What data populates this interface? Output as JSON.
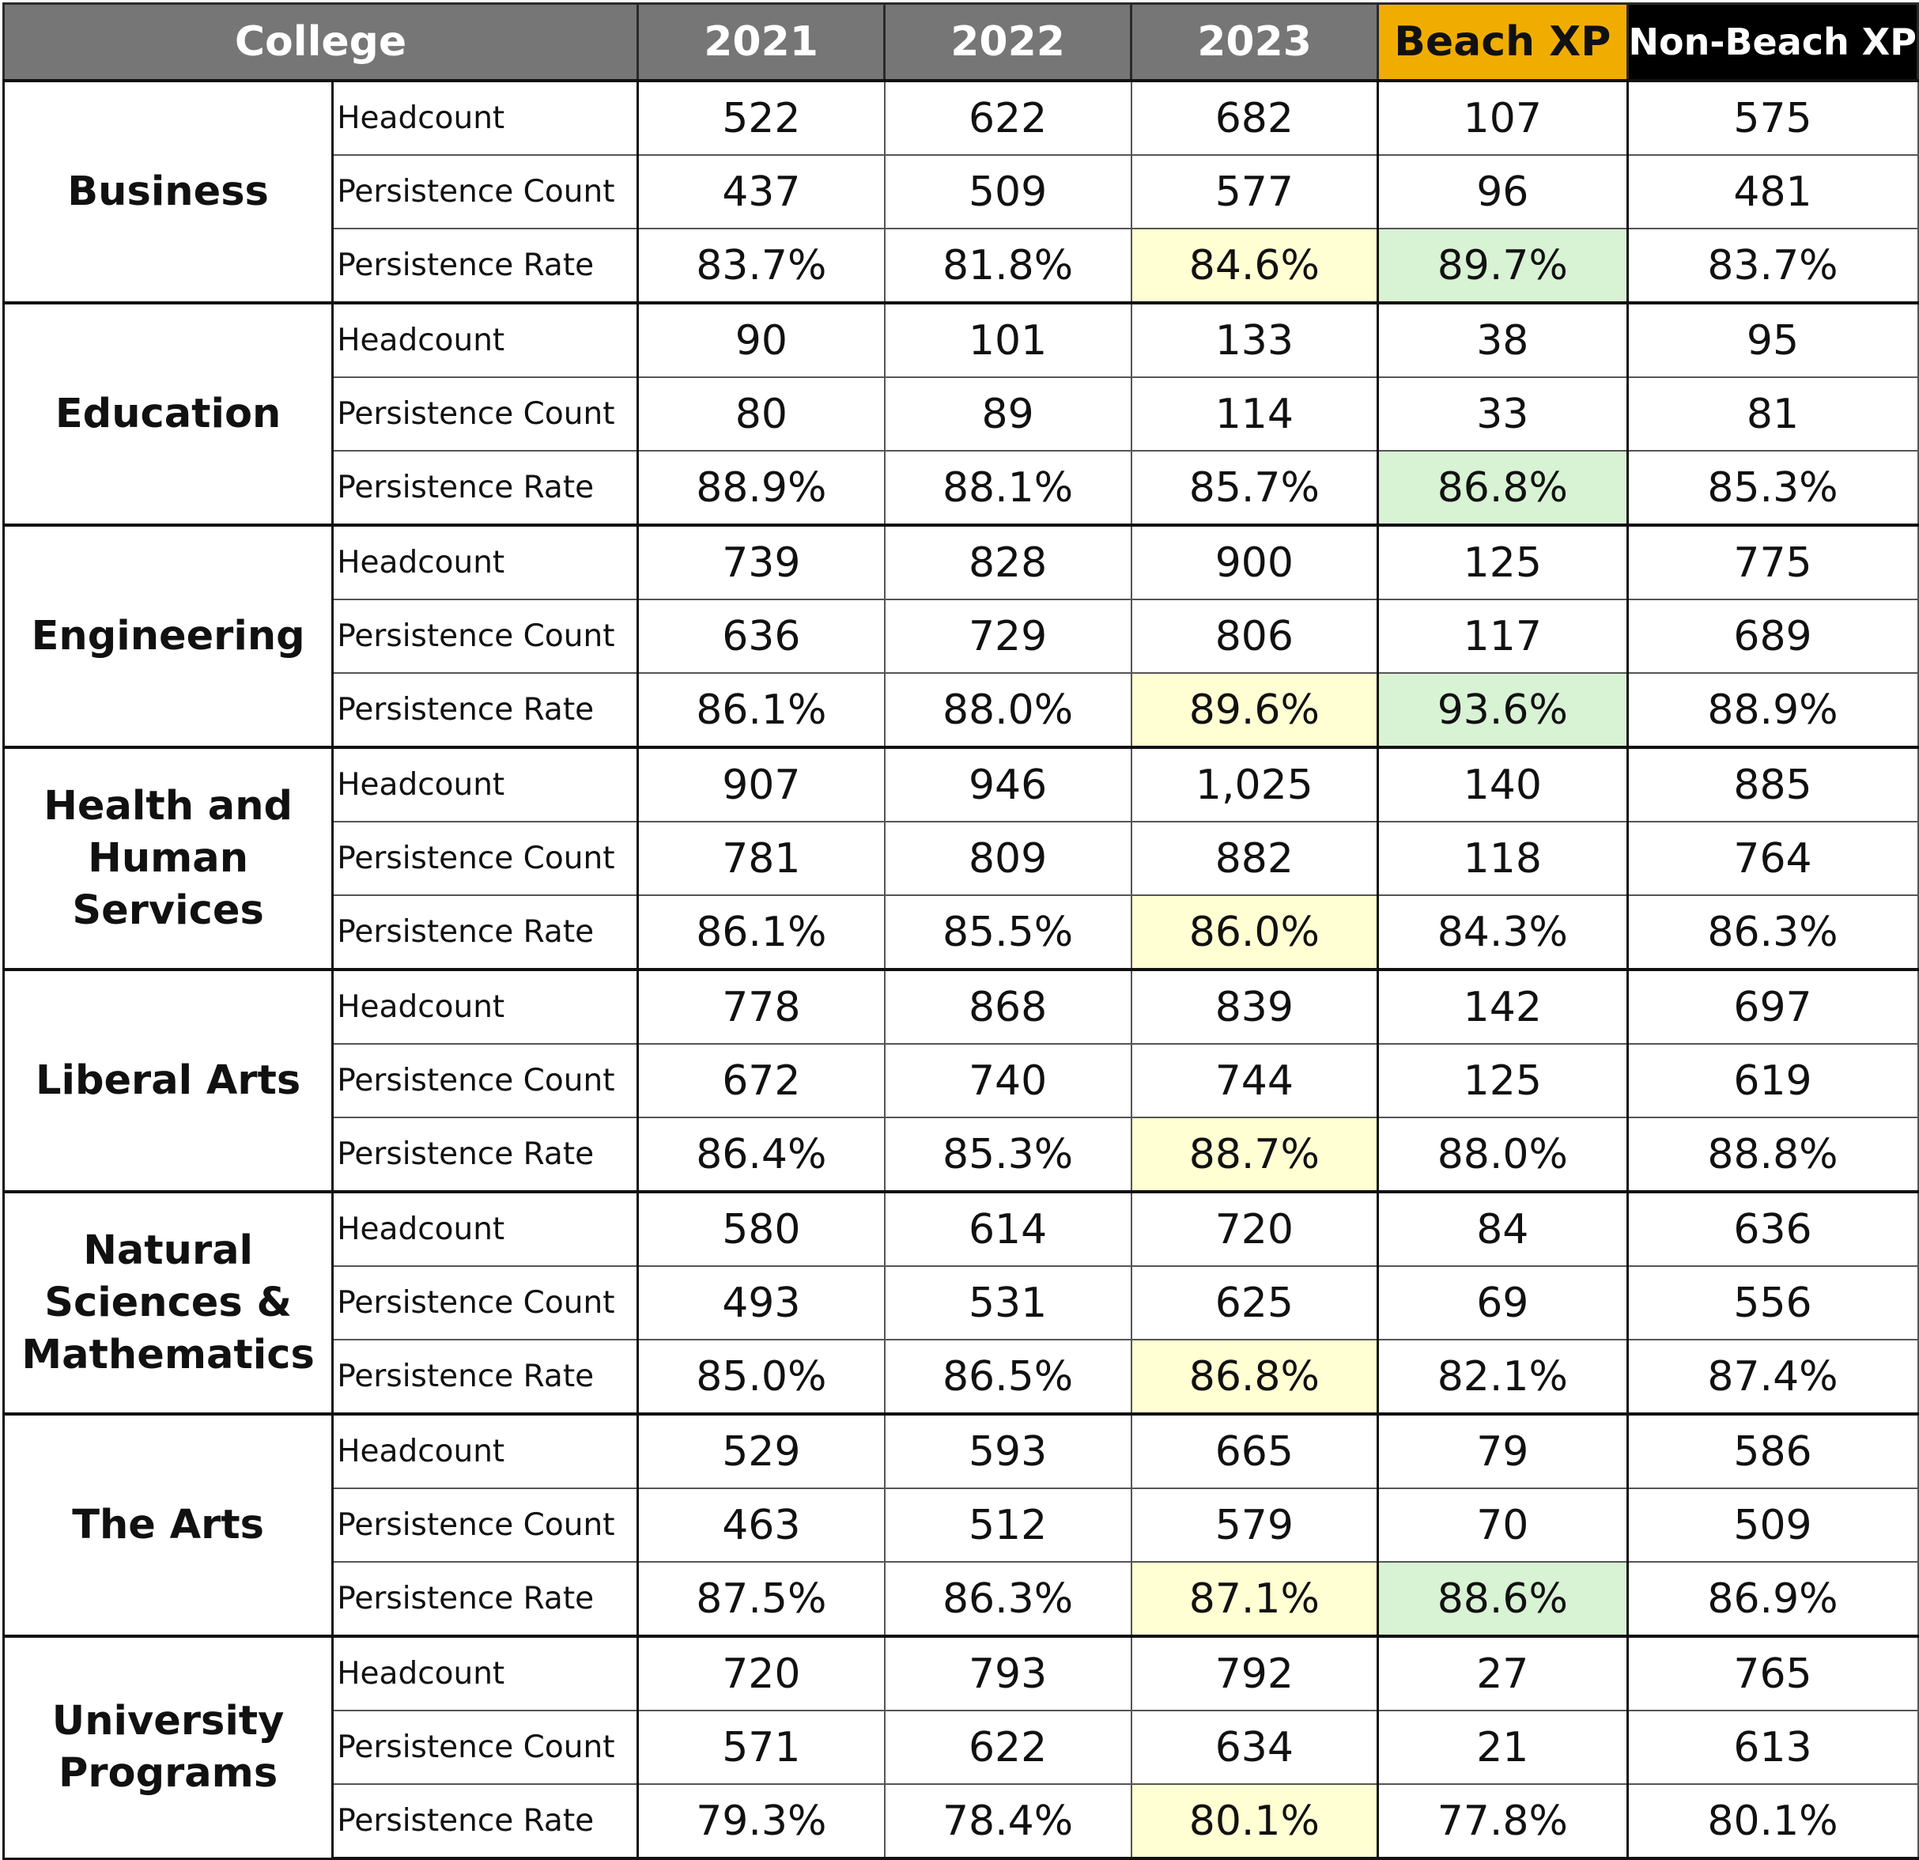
{
  "header": {
    "college": "College",
    "y2021": "2021",
    "y2022": "2022",
    "y2023": "2023",
    "beach_xp": "Beach XP",
    "non_beach_xp": "Non-Beach XP"
  },
  "colors": {
    "header_gray": "#767676",
    "beach_xp_gold": "#f0ad00",
    "non_beach_xp_black": "#000000",
    "highlight_yellow": "#ffffd3",
    "highlight_green": "#d8f2d4"
  },
  "colleges": [
    {
      "name": "Business",
      "rows": [
        {
          "label": "Headcount",
          "values": [
            "522",
            "622",
            "682",
            "107",
            "575"
          ]
        },
        {
          "label": "Persistence Count",
          "values": [
            "437",
            "509",
            "577",
            "96",
            "481"
          ]
        },
        {
          "label": "Persistence Rate",
          "values": [
            "83.7%",
            "81.8%",
            "84.6%",
            "89.7%",
            "83.7%"
          ]
        }
      ]
    },
    {
      "name": "Education",
      "rows": [
        {
          "label": "Headcount",
          "values": [
            "90",
            "101",
            "133",
            "38",
            "95"
          ]
        },
        {
          "label": "Persistence Count",
          "values": [
            "80",
            "89",
            "114",
            "33",
            "81"
          ]
        },
        {
          "label": "Persistence Rate",
          "values": [
            "88.9%",
            "88.1%",
            "85.7%",
            "86.8%",
            "85.3%"
          ]
        }
      ]
    },
    {
      "name": "Engineering",
      "rows": [
        {
          "label": "Headcount",
          "values": [
            "739",
            "828",
            "900",
            "125",
            "775"
          ]
        },
        {
          "label": "Persistence Count",
          "values": [
            "636",
            "729",
            "806",
            "117",
            "689"
          ]
        },
        {
          "label": "Persistence Rate",
          "values": [
            "86.1%",
            "88.0%",
            "89.6%",
            "93.6%",
            "88.9%"
          ]
        }
      ]
    },
    {
      "name": "Health and Human Services",
      "rows": [
        {
          "label": "Headcount",
          "values": [
            "907",
            "946",
            "1,025",
            "140",
            "885"
          ]
        },
        {
          "label": "Persistence Count",
          "values": [
            "781",
            "809",
            "882",
            "118",
            "764"
          ]
        },
        {
          "label": "Persistence Rate",
          "values": [
            "86.1%",
            "85.5%",
            "86.0%",
            "84.3%",
            "86.3%"
          ]
        }
      ]
    },
    {
      "name": "Liberal Arts",
      "rows": [
        {
          "label": "Headcount",
          "values": [
            "778",
            "868",
            "839",
            "142",
            "697"
          ]
        },
        {
          "label": "Persistence Count",
          "values": [
            "672",
            "740",
            "744",
            "125",
            "619"
          ]
        },
        {
          "label": "Persistence Rate",
          "values": [
            "86.4%",
            "85.3%",
            "88.7%",
            "88.0%",
            "88.8%"
          ]
        }
      ]
    },
    {
      "name": "Natural Sciences & Mathematics",
      "rows": [
        {
          "label": "Headcount",
          "values": [
            "580",
            "614",
            "720",
            "84",
            "636"
          ]
        },
        {
          "label": "Persistence Count",
          "values": [
            "493",
            "531",
            "625",
            "69",
            "556"
          ]
        },
        {
          "label": "Persistence Rate",
          "values": [
            "85.0%",
            "86.5%",
            "86.8%",
            "82.1%",
            "87.4%"
          ]
        }
      ]
    },
    {
      "name": "The Arts",
      "rows": [
        {
          "label": "Headcount",
          "values": [
            "529",
            "593",
            "665",
            "79",
            "586"
          ]
        },
        {
          "label": "Persistence Count",
          "values": [
            "463",
            "512",
            "579",
            "70",
            "509"
          ]
        },
        {
          "label": "Persistence Rate",
          "values": [
            "87.5%",
            "86.3%",
            "87.1%",
            "88.6%",
            "86.9%"
          ]
        }
      ]
    },
    {
      "name": "University Programs",
      "rows": [
        {
          "label": "Headcount",
          "values": [
            "720",
            "793",
            "792",
            "27",
            "765"
          ]
        },
        {
          "label": "Persistence Count",
          "values": [
            "571",
            "622",
            "634",
            "21",
            "613"
          ]
        },
        {
          "label": "Persistence Rate",
          "values": [
            "79.3%",
            "78.4%",
            "80.1%",
            "77.8%",
            "80.1%"
          ]
        }
      ]
    }
  ],
  "highlights": {
    "yellow": [
      [
        0,
        2,
        2
      ],
      [
        2,
        2,
        2
      ],
      [
        3,
        2,
        2
      ],
      [
        4,
        2,
        2
      ],
      [
        5,
        2,
        2
      ],
      [
        6,
        2,
        2
      ],
      [
        7,
        2,
        2
      ]
    ],
    "green": [
      [
        0,
        2,
        3
      ],
      [
        1,
        2,
        3
      ],
      [
        2,
        2,
        3
      ],
      [
        6,
        2,
        3
      ]
    ]
  }
}
